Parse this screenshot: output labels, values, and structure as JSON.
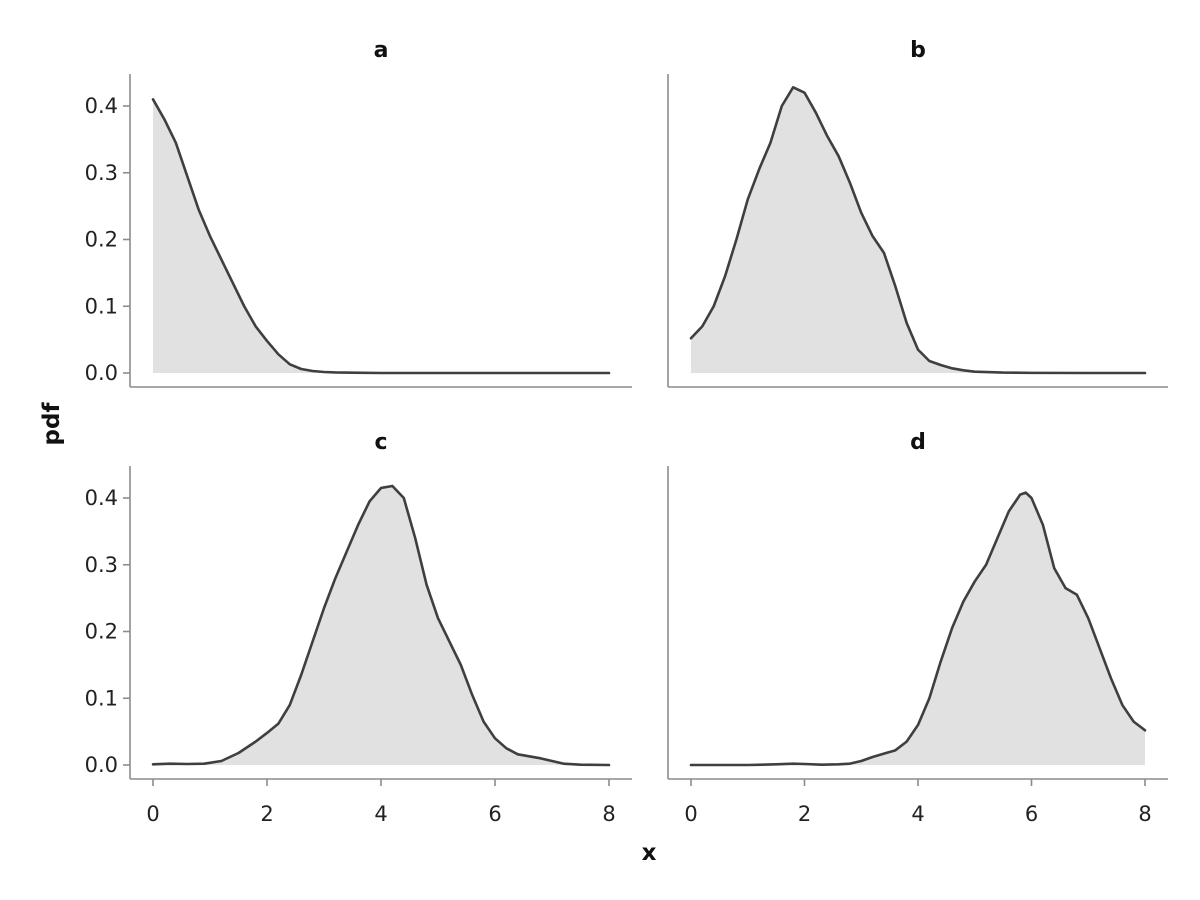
{
  "chart_data": {
    "type": "area",
    "xlabel": "x",
    "ylabel": "pdf",
    "xlim": [
      0,
      8
    ],
    "ylim": [
      0,
      0.4
    ],
    "x_ticks": [
      "0",
      "2",
      "4",
      "6",
      "8"
    ],
    "y_ticks": [
      "0.0",
      "0.1",
      "0.2",
      "0.3",
      "0.4"
    ],
    "grid": false,
    "line_color": "#3f3f3f",
    "fill_color": "#e1e1e1",
    "axis_color": "#8c8c8c",
    "panels": [
      {
        "title": "a",
        "x": [
          0,
          0.2,
          0.4,
          0.6,
          0.8,
          1.0,
          1.2,
          1.4,
          1.6,
          1.8,
          2.0,
          2.2,
          2.4,
          2.6,
          2.8,
          3.0,
          3.2,
          3.5,
          4,
          5,
          6,
          7,
          8
        ],
        "y": [
          0.41,
          0.38,
          0.345,
          0.295,
          0.245,
          0.205,
          0.17,
          0.135,
          0.1,
          0.07,
          0.048,
          0.028,
          0.013,
          0.006,
          0.003,
          0.0015,
          0.0008,
          0.0004,
          0,
          0,
          0,
          0,
          0
        ]
      },
      {
        "title": "b",
        "x": [
          0,
          0.2,
          0.4,
          0.6,
          0.8,
          1.0,
          1.2,
          1.4,
          1.6,
          1.8,
          2.0,
          2.2,
          2.4,
          2.6,
          2.8,
          3.0,
          3.2,
          3.4,
          3.6,
          3.8,
          4.0,
          4.2,
          4.4,
          4.6,
          4.8,
          5.0,
          5.5,
          6,
          7,
          8
        ],
        "y": [
          0.052,
          0.07,
          0.1,
          0.145,
          0.2,
          0.26,
          0.305,
          0.345,
          0.4,
          0.428,
          0.42,
          0.39,
          0.355,
          0.325,
          0.285,
          0.24,
          0.205,
          0.18,
          0.13,
          0.075,
          0.035,
          0.018,
          0.012,
          0.007,
          0.004,
          0.002,
          0.0006,
          0.0002,
          0,
          0
        ]
      },
      {
        "title": "c",
        "x": [
          0,
          0.3,
          0.6,
          0.9,
          1.2,
          1.5,
          1.8,
          2.0,
          2.2,
          2.4,
          2.6,
          2.8,
          3.0,
          3.2,
          3.4,
          3.6,
          3.8,
          4.0,
          4.2,
          4.4,
          4.6,
          4.8,
          5.0,
          5.2,
          5.4,
          5.6,
          5.8,
          6.0,
          6.2,
          6.4,
          6.6,
          6.8,
          7.0,
          7.2,
          7.5,
          8
        ],
        "y": [
          0.001,
          0.002,
          0.0015,
          0.002,
          0.006,
          0.018,
          0.035,
          0.048,
          0.062,
          0.09,
          0.135,
          0.185,
          0.235,
          0.28,
          0.32,
          0.36,
          0.395,
          0.415,
          0.418,
          0.4,
          0.34,
          0.27,
          0.22,
          0.185,
          0.15,
          0.105,
          0.065,
          0.04,
          0.025,
          0.016,
          0.013,
          0.01,
          0.006,
          0.002,
          0.0005,
          0
        ]
      },
      {
        "title": "d",
        "x": [
          0,
          0.5,
          1.0,
          1.5,
          1.8,
          2.0,
          2.3,
          2.6,
          2.8,
          3.0,
          3.2,
          3.4,
          3.6,
          3.8,
          4.0,
          4.2,
          4.4,
          4.6,
          4.8,
          5.0,
          5.2,
          5.4,
          5.6,
          5.8,
          5.9,
          6.0,
          6.2,
          6.4,
          6.6,
          6.8,
          7.0,
          7.2,
          7.4,
          7.6,
          7.8,
          8.0
        ],
        "y": [
          0,
          0,
          0,
          0.001,
          0.002,
          0.0015,
          0.0005,
          0.001,
          0.002,
          0.006,
          0.012,
          0.017,
          0.022,
          0.035,
          0.06,
          0.1,
          0.155,
          0.205,
          0.245,
          0.275,
          0.3,
          0.34,
          0.38,
          0.405,
          0.408,
          0.4,
          0.36,
          0.295,
          0.265,
          0.255,
          0.22,
          0.175,
          0.13,
          0.09,
          0.065,
          0.052
        ]
      }
    ]
  }
}
